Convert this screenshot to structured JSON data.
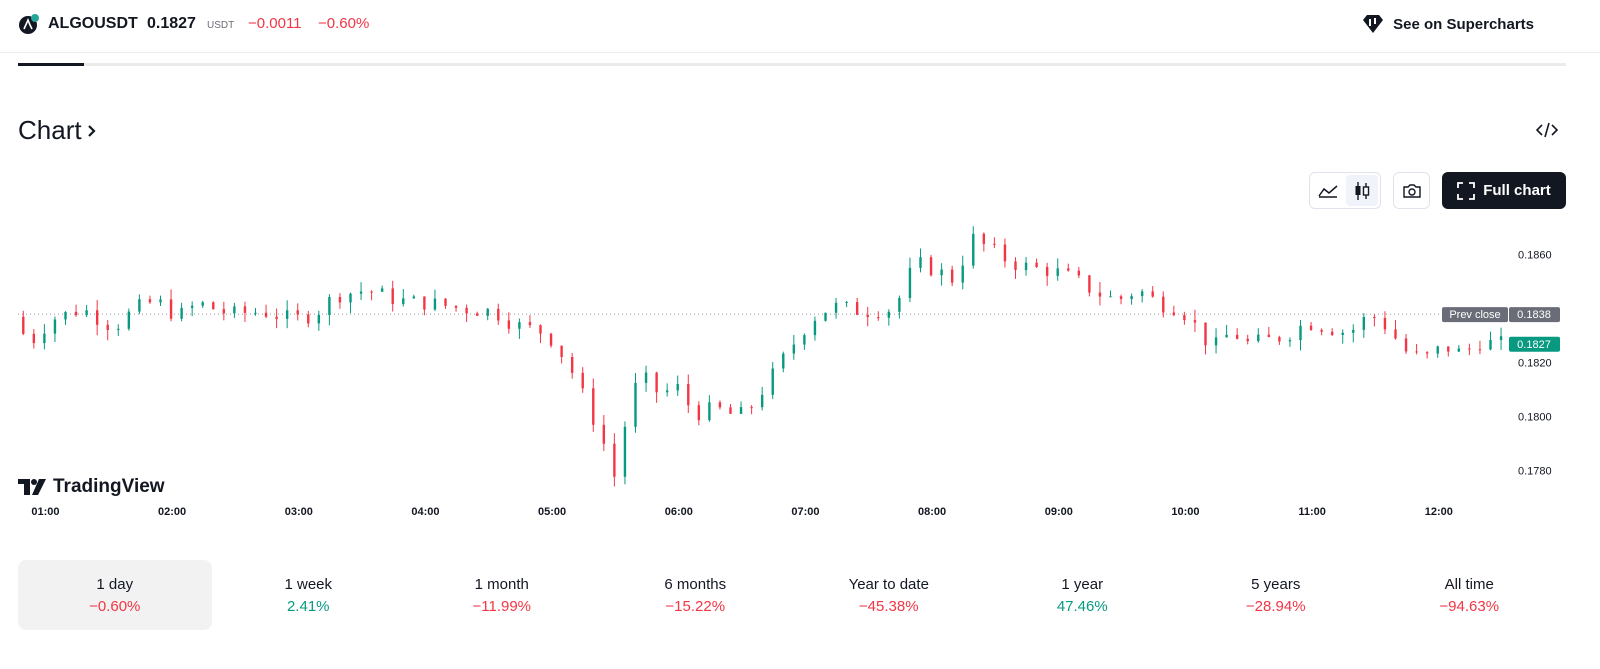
{
  "header": {
    "symbol": "ALGOUSDT",
    "price": "0.1827",
    "currency": "USDT",
    "change": "−0.0011",
    "change_percent": "−0.60%",
    "supercharts_label": "See on Supercharts"
  },
  "section": {
    "title": "Chart",
    "full_chart_label": "Full chart",
    "brand": "TradingView"
  },
  "colors": {
    "up": "#089981",
    "down": "#f23645",
    "text": "#131722",
    "prev_close_tag": "#6a6d78"
  },
  "chart_data": {
    "type": "candlestick",
    "title": "",
    "xlabel": "",
    "ylabel": "",
    "x_ticks": [
      "01:00",
      "02:00",
      "03:00",
      "04:00",
      "05:00",
      "06:00",
      "07:00",
      "08:00",
      "09:00",
      "10:00",
      "11:00",
      "12:00"
    ],
    "x_range": [
      "00:47",
      "12:29"
    ],
    "y_ticks": [
      "0.1780",
      "0.1800",
      "0.1820",
      "0.1860"
    ],
    "ylim": [
      0.1771,
      0.1871
    ],
    "grid": false,
    "prev_close": {
      "label": "Prev close",
      "value": 0.1838,
      "value_label": "0.1838"
    },
    "last_price": {
      "value": 0.1827,
      "value_label": "0.1827"
    },
    "interval_minutes": 5,
    "close_series": [
      {
        "t": "00:47",
        "v": 0.1837
      },
      {
        "t": "00:55",
        "v": 0.1827
      },
      {
        "t": "01:05",
        "v": 0.1836
      },
      {
        "t": "01:20",
        "v": 0.184
      },
      {
        "t": "01:35",
        "v": 0.1833
      },
      {
        "t": "01:45",
        "v": 0.184
      },
      {
        "t": "01:55",
        "v": 0.1843
      },
      {
        "t": "02:05",
        "v": 0.1837
      },
      {
        "t": "02:15",
        "v": 0.1842
      },
      {
        "t": "02:30",
        "v": 0.1838
      },
      {
        "t": "02:45",
        "v": 0.1839
      },
      {
        "t": "03:00",
        "v": 0.1836
      },
      {
        "t": "03:10",
        "v": 0.1838
      },
      {
        "t": "03:20",
        "v": 0.1845
      },
      {
        "t": "03:35",
        "v": 0.1847
      },
      {
        "t": "03:50",
        "v": 0.1843
      },
      {
        "t": "04:05",
        "v": 0.1842
      },
      {
        "t": "04:20",
        "v": 0.184
      },
      {
        "t": "04:35",
        "v": 0.1839
      },
      {
        "t": "04:45",
        "v": 0.1834
      },
      {
        "t": "05:00",
        "v": 0.1831
      },
      {
        "t": "05:10",
        "v": 0.182
      },
      {
        "t": "05:20",
        "v": 0.1803
      },
      {
        "t": "05:27",
        "v": 0.179
      },
      {
        "t": "05:32",
        "v": 0.1778
      },
      {
        "t": "05:40",
        "v": 0.1808
      },
      {
        "t": "05:45",
        "v": 0.1815
      },
      {
        "t": "05:55",
        "v": 0.1807
      },
      {
        "t": "06:00",
        "v": 0.1813
      },
      {
        "t": "06:10",
        "v": 0.1801
      },
      {
        "t": "06:20",
        "v": 0.1803
      },
      {
        "t": "06:30",
        "v": 0.18
      },
      {
        "t": "06:35",
        "v": 0.1802
      },
      {
        "t": "06:45",
        "v": 0.1813
      },
      {
        "t": "06:55",
        "v": 0.1825
      },
      {
        "t": "07:05",
        "v": 0.1836
      },
      {
        "t": "07:15",
        "v": 0.1841
      },
      {
        "t": "07:30",
        "v": 0.1839
      },
      {
        "t": "07:45",
        "v": 0.184
      },
      {
        "t": "07:50",
        "v": 0.185
      },
      {
        "t": "07:55",
        "v": 0.1857
      },
      {
        "t": "08:05",
        "v": 0.1854
      },
      {
        "t": "08:12",
        "v": 0.1851
      },
      {
        "t": "08:17",
        "v": 0.1858
      },
      {
        "t": "08:22",
        "v": 0.1866
      },
      {
        "t": "08:30",
        "v": 0.1862
      },
      {
        "t": "08:40",
        "v": 0.1857
      },
      {
        "t": "08:50",
        "v": 0.1855
      },
      {
        "t": "09:00",
        "v": 0.1854
      },
      {
        "t": "09:10",
        "v": 0.1851
      },
      {
        "t": "09:20",
        "v": 0.1846
      },
      {
        "t": "09:30",
        "v": 0.1843
      },
      {
        "t": "09:40",
        "v": 0.1847
      },
      {
        "t": "09:50",
        "v": 0.1842
      },
      {
        "t": "10:00",
        "v": 0.184
      },
      {
        "t": "10:08",
        "v": 0.1833
      },
      {
        "t": "10:15",
        "v": 0.1825
      },
      {
        "t": "10:25",
        "v": 0.1832
      },
      {
        "t": "10:30",
        "v": 0.1827
      },
      {
        "t": "10:40",
        "v": 0.1828
      },
      {
        "t": "10:50",
        "v": 0.183
      },
      {
        "t": "11:00",
        "v": 0.1835
      },
      {
        "t": "11:10",
        "v": 0.1833
      },
      {
        "t": "11:20",
        "v": 0.1831
      },
      {
        "t": "11:30",
        "v": 0.1838
      },
      {
        "t": "11:40",
        "v": 0.1832
      },
      {
        "t": "11:45",
        "v": 0.1825
      },
      {
        "t": "11:55",
        "v": 0.1821
      },
      {
        "t": "12:05",
        "v": 0.1826
      },
      {
        "t": "12:15",
        "v": 0.1823
      },
      {
        "t": "12:20",
        "v": 0.1828
      },
      {
        "t": "12:29",
        "v": 0.1827
      }
    ]
  },
  "periods": [
    {
      "label": "1 day",
      "value": "−0.60%",
      "trend": "neg",
      "active": true
    },
    {
      "label": "1 week",
      "value": "2.41%",
      "trend": "pos",
      "active": false
    },
    {
      "label": "1 month",
      "value": "−11.99%",
      "trend": "neg",
      "active": false
    },
    {
      "label": "6 months",
      "value": "−15.22%",
      "trend": "neg",
      "active": false
    },
    {
      "label": "Year to date",
      "value": "−45.38%",
      "trend": "neg",
      "active": false
    },
    {
      "label": "1 year",
      "value": "47.46%",
      "trend": "pos",
      "active": false
    },
    {
      "label": "5 years",
      "value": "−28.94%",
      "trend": "neg",
      "active": false
    },
    {
      "label": "All time",
      "value": "−94.63%",
      "trend": "neg",
      "active": false
    }
  ]
}
